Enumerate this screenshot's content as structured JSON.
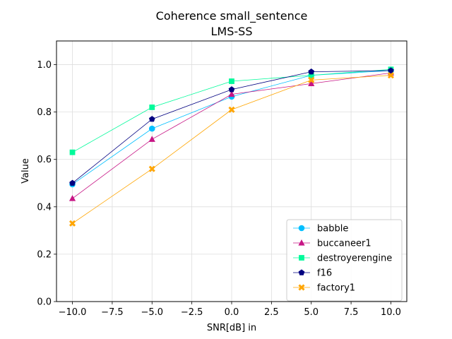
{
  "chart_data": {
    "type": "line",
    "title": "Coherence small_sentence",
    "subtitle": "LMS-SS",
    "xlabel": "SNR[dB] in",
    "ylabel": "Value",
    "xlim": [
      -11,
      11
    ],
    "ylim": [
      0,
      1.1
    ],
    "xticks": [
      -10,
      -7.5,
      -5,
      -2.5,
      0,
      2.5,
      5,
      7.5,
      10
    ],
    "xtick_labels": [
      "−10.0",
      "−7.5",
      "−5.0",
      "−2.5",
      "0.0",
      "2.5",
      "5.0",
      "7.5",
      "10.0"
    ],
    "yticks": [
      0,
      0.2,
      0.4,
      0.6,
      0.8,
      1.0
    ],
    "ytick_labels": [
      "0.0",
      "0.2",
      "0.4",
      "0.6",
      "0.8",
      "1.0"
    ],
    "grid": true,
    "legend_position": "bottom-right",
    "x": [
      -10,
      -5,
      0,
      5,
      10
    ],
    "series": [
      {
        "name": "babble",
        "values": [
          0.495,
          0.73,
          0.865,
          0.955,
          0.975
        ],
        "color": "#00bfff",
        "marker": "circle"
      },
      {
        "name": "buccaneer1",
        "values": [
          0.435,
          0.685,
          0.875,
          0.92,
          0.965
        ],
        "color": "#c71585",
        "marker": "triangle"
      },
      {
        "name": "destroyerengine",
        "values": [
          0.63,
          0.82,
          0.93,
          0.955,
          0.98
        ],
        "color": "#00fa9a",
        "marker": "square"
      },
      {
        "name": "f16",
        "values": [
          0.5,
          0.77,
          0.895,
          0.97,
          0.975
        ],
        "color": "#000080",
        "marker": "pentagon"
      },
      {
        "name": "factory1",
        "values": [
          0.33,
          0.56,
          0.81,
          0.935,
          0.955
        ],
        "color": "#ffa500",
        "marker": "x"
      }
    ]
  }
}
